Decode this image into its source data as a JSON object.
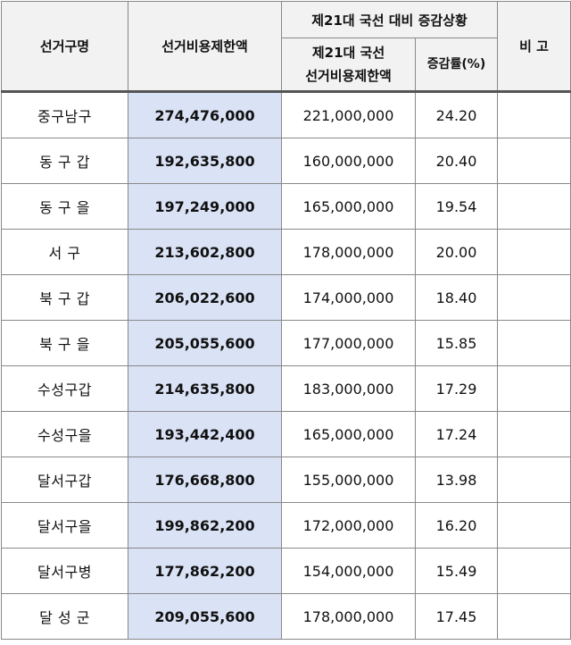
{
  "header": {
    "district": "선거구명",
    "limit": "선거비용제한액",
    "group": "제21대 국선 대비 증감상황",
    "prev_limit_line1": "제21대 국선",
    "prev_limit_line2": "선거비용제한액",
    "change_rate": "증감률(%)",
    "remarks": "비 고"
  },
  "rows": [
    {
      "district": "중구남구",
      "limit": "274,476,000",
      "prev": "221,000,000",
      "rate": "24.20",
      "note": ""
    },
    {
      "district": "동 구 갑",
      "limit": "192,635,800",
      "prev": "160,000,000",
      "rate": "20.40",
      "note": ""
    },
    {
      "district": "동 구 을",
      "limit": "197,249,000",
      "prev": "165,000,000",
      "rate": "19.54",
      "note": ""
    },
    {
      "district": "서 구",
      "limit": "213,602,800",
      "prev": "178,000,000",
      "rate": "20.00",
      "note": ""
    },
    {
      "district": "북 구 갑",
      "limit": "206,022,600",
      "prev": "174,000,000",
      "rate": "18.40",
      "note": ""
    },
    {
      "district": "북 구 을",
      "limit": "205,055,600",
      "prev": "177,000,000",
      "rate": "15.85",
      "note": ""
    },
    {
      "district": "수성구갑",
      "limit": "214,635,800",
      "prev": "183,000,000",
      "rate": "17.29",
      "note": ""
    },
    {
      "district": "수성구을",
      "limit": "193,442,400",
      "prev": "165,000,000",
      "rate": "17.24",
      "note": ""
    },
    {
      "district": "달서구갑",
      "limit": "176,668,800",
      "prev": "155,000,000",
      "rate": "13.98",
      "note": ""
    },
    {
      "district": "달서구을",
      "limit": "199,862,200",
      "prev": "172,000,000",
      "rate": "16.20",
      "note": ""
    },
    {
      "district": "달서구병",
      "limit": "177,862,200",
      "prev": "154,000,000",
      "rate": "15.49",
      "note": ""
    },
    {
      "district": "달 성 군",
      "limit": "209,055,600",
      "prev": "178,000,000",
      "rate": "17.45",
      "note": ""
    }
  ],
  "colors": {
    "limit_highlight": "#dae2f5",
    "header_bg": "#f2f2f2"
  }
}
